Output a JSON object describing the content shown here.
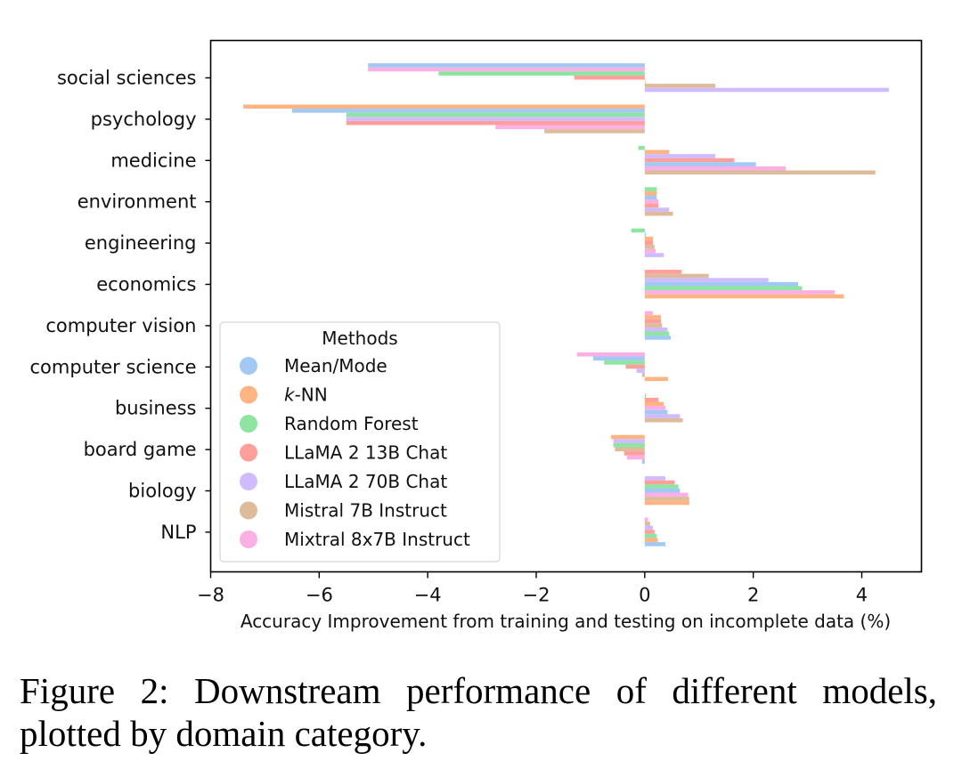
{
  "chart_data": {
    "type": "bar",
    "orientation": "horizontal",
    "title": "",
    "xlabel": "Accuracy Improvement from training and testing on incomplete data (%)",
    "ylabel": "",
    "xlim": [
      -8,
      5.1
    ],
    "xticks": [
      -8,
      -6,
      -4,
      -2,
      0,
      2,
      4
    ],
    "xtick_labels": [
      "−8",
      "−6",
      "−4",
      "−2",
      "0",
      "2",
      "4"
    ],
    "grid": false,
    "legend": {
      "title": "Methods",
      "placement": "lower-left",
      "entries": [
        {
          "name": "Mean/Mode",
          "prefix_italic": "",
          "color": "#a1c9f4"
        },
        {
          "name": "-NN",
          "prefix_italic": "k",
          "color": "#ffb482"
        },
        {
          "name": "Random Forest",
          "prefix_italic": "",
          "color": "#8de5a1"
        },
        {
          "name": "LLaMA 2 13B Chat",
          "prefix_italic": "",
          "color": "#ff9f9b"
        },
        {
          "name": "LLaMA 2 70B Chat",
          "prefix_italic": "",
          "color": "#d0bbff"
        },
        {
          "name": "Mistral 7B Instruct",
          "prefix_italic": "",
          "color": "#debb9b"
        },
        {
          "name": "Mixtral 8x7B Instruct",
          "prefix_italic": "",
          "color": "#fab0e4"
        }
      ]
    },
    "categories": [
      "social sciences",
      "psychology",
      "medicine",
      "environment",
      "engineering",
      "economics",
      "computer vision",
      "computer science",
      "business",
      "board game",
      "biology",
      "NLP"
    ],
    "groups": [
      {
        "category": "social sciences",
        "bars": [
          {
            "method": "Mean/Mode",
            "value": -5.1
          },
          {
            "method": "Mixtral 8x7B Instruct",
            "value": -5.1
          },
          {
            "method": "Random Forest",
            "value": -3.8
          },
          {
            "method": "LLaMA 2 13B Chat",
            "value": -1.3
          },
          {
            "method": "k-NN",
            "value": 0.0
          },
          {
            "method": "Mistral 7B Instruct",
            "value": 1.3
          },
          {
            "method": "LLaMA 2 70B Chat",
            "value": 4.5
          }
        ]
      },
      {
        "category": "psychology",
        "bars": [
          {
            "method": "k-NN",
            "value": -7.4
          },
          {
            "method": "Mean/Mode",
            "value": -6.5
          },
          {
            "method": "Random Forest",
            "value": -5.5
          },
          {
            "method": "LLaMA 2 70B Chat",
            "value": -5.5
          },
          {
            "method": "LLaMA 2 13B Chat",
            "value": -5.5
          },
          {
            "method": "Mixtral 8x7B Instruct",
            "value": -2.75
          },
          {
            "method": "Mistral 7B Instruct",
            "value": -1.85
          }
        ]
      },
      {
        "category": "medicine",
        "bars": [
          {
            "method": "Random Forest",
            "value": -0.12
          },
          {
            "method": "k-NN",
            "value": 0.45
          },
          {
            "method": "LLaMA 2 70B Chat",
            "value": 1.3
          },
          {
            "method": "LLaMA 2 13B Chat",
            "value": 1.65
          },
          {
            "method": "Mean/Mode",
            "value": 2.05
          },
          {
            "method": "Mixtral 8x7B Instruct",
            "value": 2.6
          },
          {
            "method": "Mistral 7B Instruct",
            "value": 4.25
          }
        ]
      },
      {
        "category": "environment",
        "bars": [
          {
            "method": "Random Forest",
            "value": 0.22
          },
          {
            "method": "k-NN",
            "value": 0.22
          },
          {
            "method": "Mean/Mode",
            "value": 0.22
          },
          {
            "method": "Mixtral 8x7B Instruct",
            "value": 0.25
          },
          {
            "method": "LLaMA 2 13B Chat",
            "value": 0.25
          },
          {
            "method": "LLaMA 2 70B Chat",
            "value": 0.45
          },
          {
            "method": "Mistral 7B Instruct",
            "value": 0.52
          }
        ]
      },
      {
        "category": "engineering",
        "bars": [
          {
            "method": "Random Forest",
            "value": -0.25
          },
          {
            "method": "Mean/Mode",
            "value": 0.02
          },
          {
            "method": "k-NN",
            "value": 0.15
          },
          {
            "method": "LLaMA 2 13B Chat",
            "value": 0.15
          },
          {
            "method": "Mistral 7B Instruct",
            "value": 0.18
          },
          {
            "method": "Mixtral 8x7B Instruct",
            "value": 0.2
          },
          {
            "method": "LLaMA 2 70B Chat",
            "value": 0.35
          }
        ]
      },
      {
        "category": "economics",
        "bars": [
          {
            "method": "LLaMA 2 13B Chat",
            "value": 0.68
          },
          {
            "method": "Mistral 7B Instruct",
            "value": 1.18
          },
          {
            "method": "LLaMA 2 70B Chat",
            "value": 2.28
          },
          {
            "method": "Mean/Mode",
            "value": 2.83
          },
          {
            "method": "Random Forest",
            "value": 2.9
          },
          {
            "method": "Mixtral 8x7B Instruct",
            "value": 3.5
          },
          {
            "method": "k-NN",
            "value": 3.67
          }
        ]
      },
      {
        "category": "computer vision",
        "bars": [
          {
            "method": "Mixtral 8x7B Instruct",
            "value": 0.15
          },
          {
            "method": "k-NN",
            "value": 0.3
          },
          {
            "method": "LLaMA 2 13B Chat",
            "value": 0.3
          },
          {
            "method": "Mistral 7B Instruct",
            "value": 0.32
          },
          {
            "method": "LLaMA 2 70B Chat",
            "value": 0.42
          },
          {
            "method": "Random Forest",
            "value": 0.45
          },
          {
            "method": "Mean/Mode",
            "value": 0.48
          }
        ]
      },
      {
        "category": "computer science",
        "bars": [
          {
            "method": "Mixtral 8x7B Instruct",
            "value": -1.25
          },
          {
            "method": "Mean/Mode",
            "value": -0.95
          },
          {
            "method": "Random Forest",
            "value": -0.75
          },
          {
            "method": "LLaMA 2 13B Chat",
            "value": -0.35
          },
          {
            "method": "LLaMA 2 70B Chat",
            "value": -0.15
          },
          {
            "method": "Mistral 7B Instruct",
            "value": -0.05
          },
          {
            "method": "k-NN",
            "value": 0.43
          }
        ]
      },
      {
        "category": "business",
        "bars": [
          {
            "method": "Random Forest",
            "value": 0.02
          },
          {
            "method": "LLaMA 2 13B Chat",
            "value": 0.25
          },
          {
            "method": "k-NN",
            "value": 0.35
          },
          {
            "method": "Mixtral 8x7B Instruct",
            "value": 0.38
          },
          {
            "method": "Mean/Mode",
            "value": 0.42
          },
          {
            "method": "LLaMA 2 70B Chat",
            "value": 0.65
          },
          {
            "method": "Mistral 7B Instruct",
            "value": 0.7
          }
        ]
      },
      {
        "category": "board game",
        "bars": [
          {
            "method": "k-NN",
            "value": -0.62
          },
          {
            "method": "LLaMA 2 70B Chat",
            "value": -0.58
          },
          {
            "method": "Random Forest",
            "value": -0.58
          },
          {
            "method": "Mistral 7B Instruct",
            "value": -0.55
          },
          {
            "method": "LLaMA 2 13B Chat",
            "value": -0.38
          },
          {
            "method": "Mixtral 8x7B Instruct",
            "value": -0.33
          },
          {
            "method": "Mean/Mode",
            "value": -0.05
          }
        ]
      },
      {
        "category": "biology",
        "bars": [
          {
            "method": "LLaMA 2 70B Chat",
            "value": 0.38
          },
          {
            "method": "LLaMA 2 13B Chat",
            "value": 0.55
          },
          {
            "method": "Random Forest",
            "value": 0.62
          },
          {
            "method": "Mean/Mode",
            "value": 0.65
          },
          {
            "method": "Mixtral 8x7B Instruct",
            "value": 0.8
          },
          {
            "method": "Mistral 7B Instruct",
            "value": 0.82
          },
          {
            "method": "k-NN",
            "value": 0.82
          }
        ]
      },
      {
        "category": "NLP",
        "bars": [
          {
            "method": "Mixtral 8x7B Instruct",
            "value": 0.06
          },
          {
            "method": "Mistral 7B Instruct",
            "value": 0.1
          },
          {
            "method": "LLaMA 2 70B Chat",
            "value": 0.15
          },
          {
            "method": "LLaMA 2 13B Chat",
            "value": 0.18
          },
          {
            "method": "Random Forest",
            "value": 0.22
          },
          {
            "method": "k-NN",
            "value": 0.24
          },
          {
            "method": "Mean/Mode",
            "value": 0.38
          }
        ]
      }
    ]
  },
  "caption": "Figure 2: Downstream performance of different models, plotted by domain category."
}
